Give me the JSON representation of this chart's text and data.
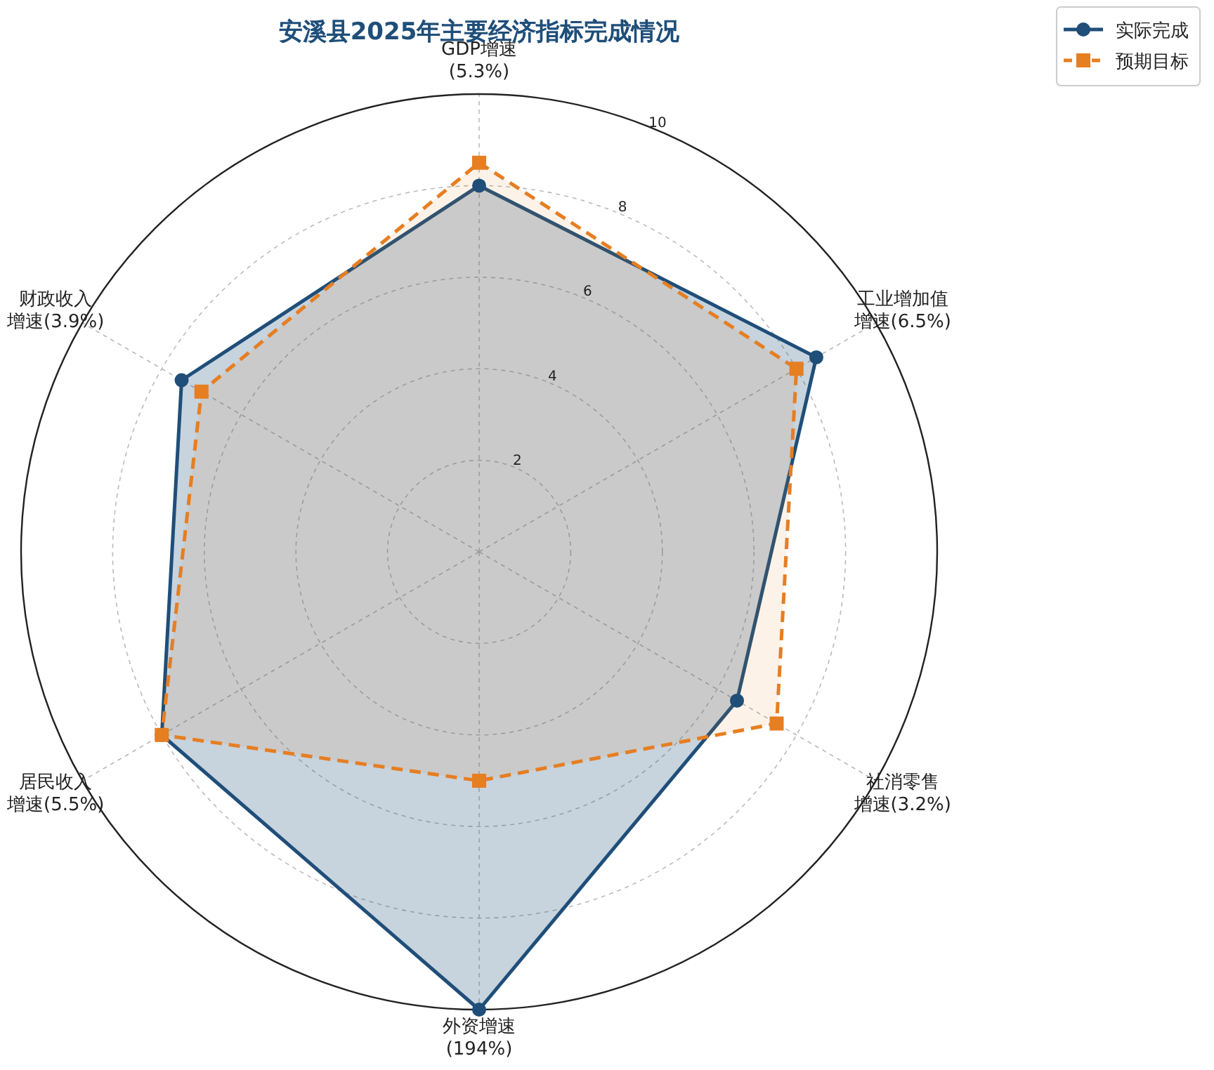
{
  "chart_data": {
    "type": "radar",
    "title": "安溪县2025年主要经济指标完成情况",
    "categories": [
      "GDP增速\n(5.3%)",
      "工业增加值增速(6.5%)",
      "社消零售增速(3.2%)",
      "外资增速(194%)",
      "居民收入增速(5.5%)",
      "财政收入增速(3.9%)"
    ],
    "series": [
      {
        "name": "实际完成",
        "color": "#1f4e79",
        "values": [
          8.0,
          8.5,
          6.5,
          10,
          8.0,
          7.5
        ],
        "marker": "circle",
        "line_style": "solid"
      },
      {
        "name": "预期目标",
        "color": "#e67e22",
        "values": [
          8.5,
          8.0,
          7.5,
          5.0,
          8.0,
          7.0
        ],
        "marker": "square",
        "line_style": "dashed"
      }
    ],
    "ylim": [
      0,
      10
    ],
    "yticks": [
      2,
      4,
      6,
      8,
      10
    ],
    "grid": true,
    "legend": "top right"
  }
}
